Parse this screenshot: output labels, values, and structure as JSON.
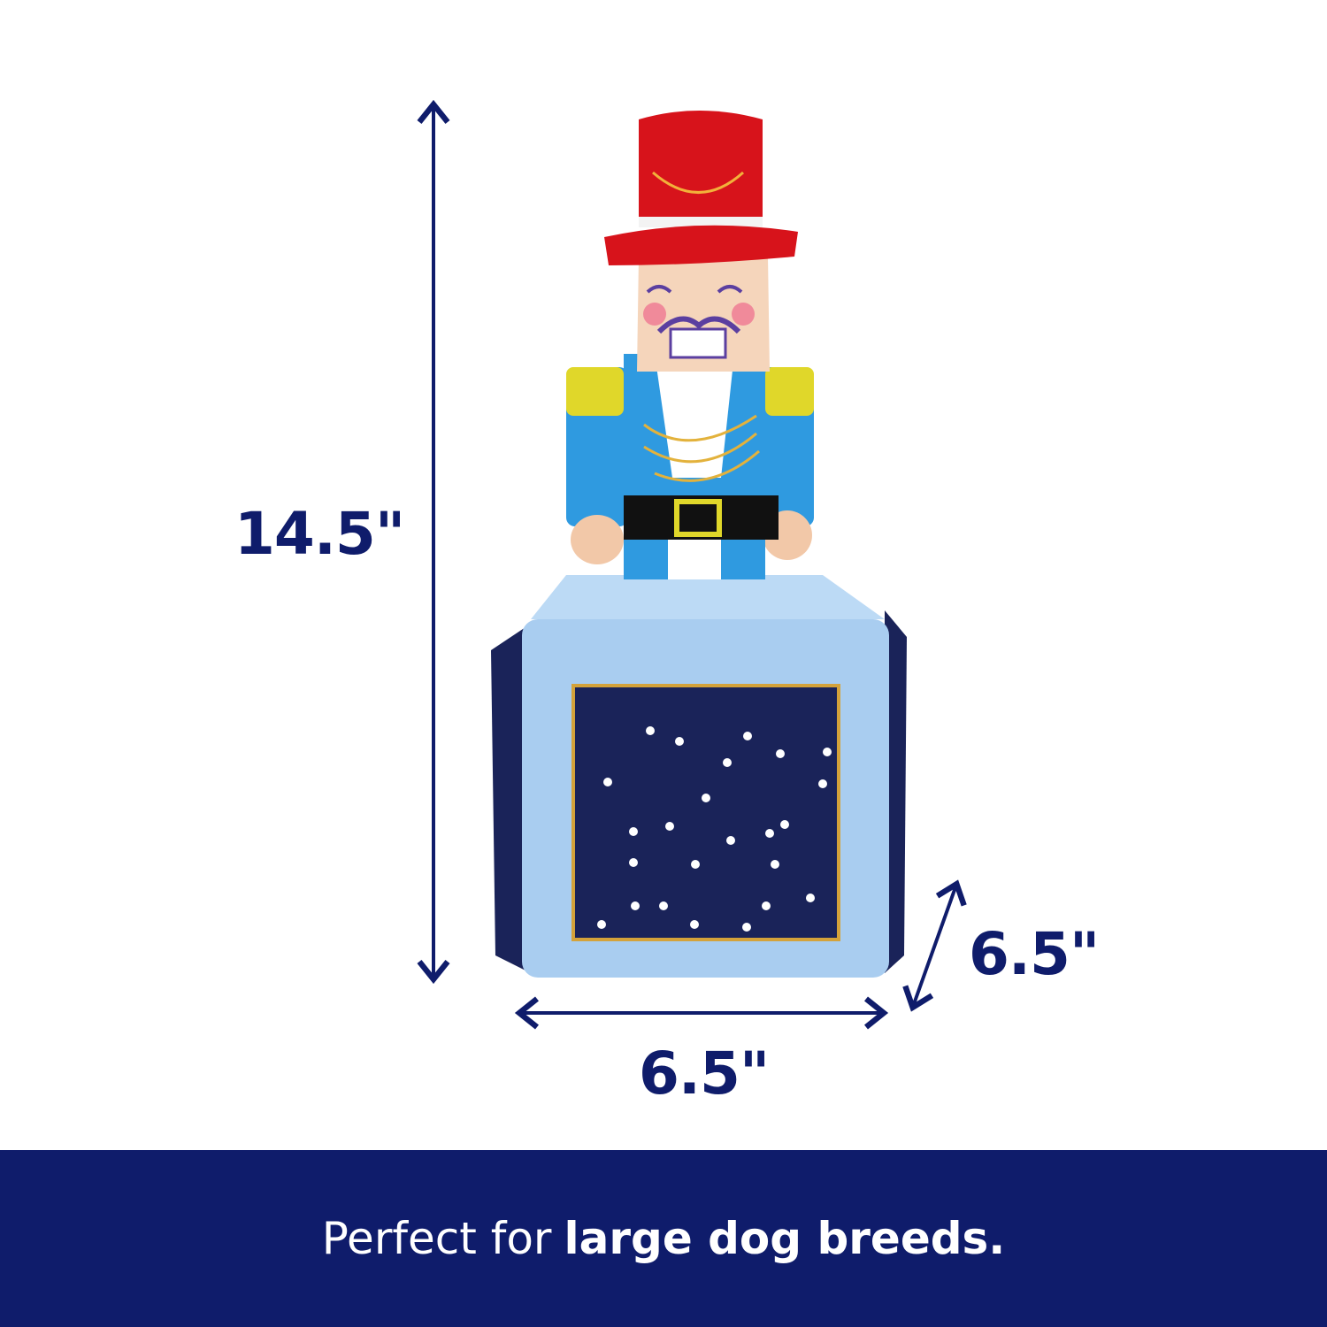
{
  "dimensions": {
    "height": "14.5\"",
    "width": "6.5\"",
    "depth": "6.5\""
  },
  "banner": {
    "text_regular": "Perfect for",
    "text_bold": "large dog breeds."
  },
  "colors": {
    "navy": "#0f1c6b",
    "hat_red": "#d7131b",
    "jacket_blue": "#2f9ae0",
    "box_light_blue": "#a9cdf0"
  }
}
